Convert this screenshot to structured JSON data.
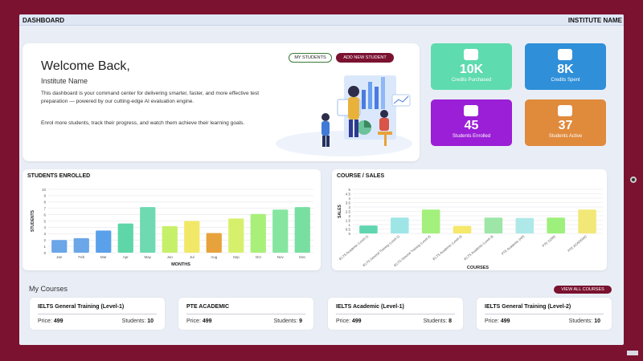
{
  "topbar": {
    "left": "DASHBOARD",
    "right": "INSTITUTE NAME"
  },
  "welcome": {
    "heading": "Welcome Back,",
    "name": "Institute Name",
    "para1": "This dashboard is your command center for delivering smarter, faster, and more effective test preparation — powered by our cutting-edge AI evaluation engine.",
    "para2": "Enrol more students, track their progress, and watch them achieve their learning goals.",
    "btn_students": "MY STUDENTS",
    "btn_add": "ADD NEW STUDENT"
  },
  "stats": [
    {
      "value": "10K",
      "label": "Credits Purchased",
      "color": "#5fdbb0",
      "icon": "plus-icon"
    },
    {
      "value": "8K",
      "label": "Credits Spent",
      "color": "#2f8fd8",
      "icon": "minus-icon"
    },
    {
      "value": "45",
      "label": "Students Enrolled",
      "color": "#9b1fd6",
      "icon": "users-icon"
    },
    {
      "value": "37",
      "label": "Students Active",
      "color": "#e08a3c",
      "icon": "id-card-icon"
    }
  ],
  "enrolled_card": {
    "title": "STUDENTS ENROLLED"
  },
  "sales_card": {
    "title": "COURSE / SALES"
  },
  "chart_data": [
    {
      "type": "bar",
      "title": "STUDENTS ENROLLED",
      "xlabel": "MONTHS",
      "ylabel": "STUDENTS",
      "categories": [
        "Jan",
        "Feb",
        "Mar",
        "Apr",
        "May",
        "Jun",
        "Jul",
        "Aug",
        "Sep",
        "Oct",
        "Nov",
        "Dec"
      ],
      "values": [
        2,
        2.3,
        3.5,
        4.6,
        7.2,
        4.2,
        5,
        3.1,
        5.4,
        6.1,
        6.8,
        7.2
      ],
      "ylim": [
        0,
        10
      ],
      "yticks": [
        0,
        1,
        2,
        3,
        4,
        5,
        6,
        7,
        8,
        9,
        10
      ],
      "grid": true
    },
    {
      "type": "bar",
      "title": "COURSE / SALES",
      "xlabel": "COURSES",
      "ylabel": "SALES",
      "categories": [
        "IELTS Academic (Level-1)",
        "IELTS General Training (Level-1)",
        "IELTS General Training (Level-2)",
        "IELTS Academic (Level-2)",
        "IELTS Academic (Level-3)",
        "PTE Academic (HR)",
        "PTE CORE",
        "PTE ACADEMIC"
      ],
      "values": [
        0.9,
        1.8,
        2.7,
        0.85,
        1.8,
        1.75,
        1.8,
        2.7
      ],
      "ylim": [
        0,
        5
      ],
      "yticks": [
        0,
        0.5,
        1,
        1.5,
        2,
        2.5,
        3,
        3.5,
        4,
        4.5,
        5
      ],
      "grid": true
    }
  ],
  "courses_section": {
    "title": "My Courses",
    "view_all": "VIEW ALL COURSES"
  },
  "courses": [
    {
      "name": "IELTS General Training (Level-1)",
      "price_label": "Price:",
      "price": "499",
      "students_label": "Students:",
      "students": "10"
    },
    {
      "name": "PTE ACADEMIC",
      "price_label": "Price:",
      "price": "499",
      "students_label": "Students:",
      "students": "9"
    },
    {
      "name": "IELTS Academic (Level-1)",
      "price_label": "Price:",
      "price": "499",
      "students_label": "Students:",
      "students": "8"
    },
    {
      "name": "IELTS General Training (Level-2)",
      "price_label": "Price:",
      "price": "499",
      "students_label": "Students:",
      "students": "10"
    }
  ]
}
